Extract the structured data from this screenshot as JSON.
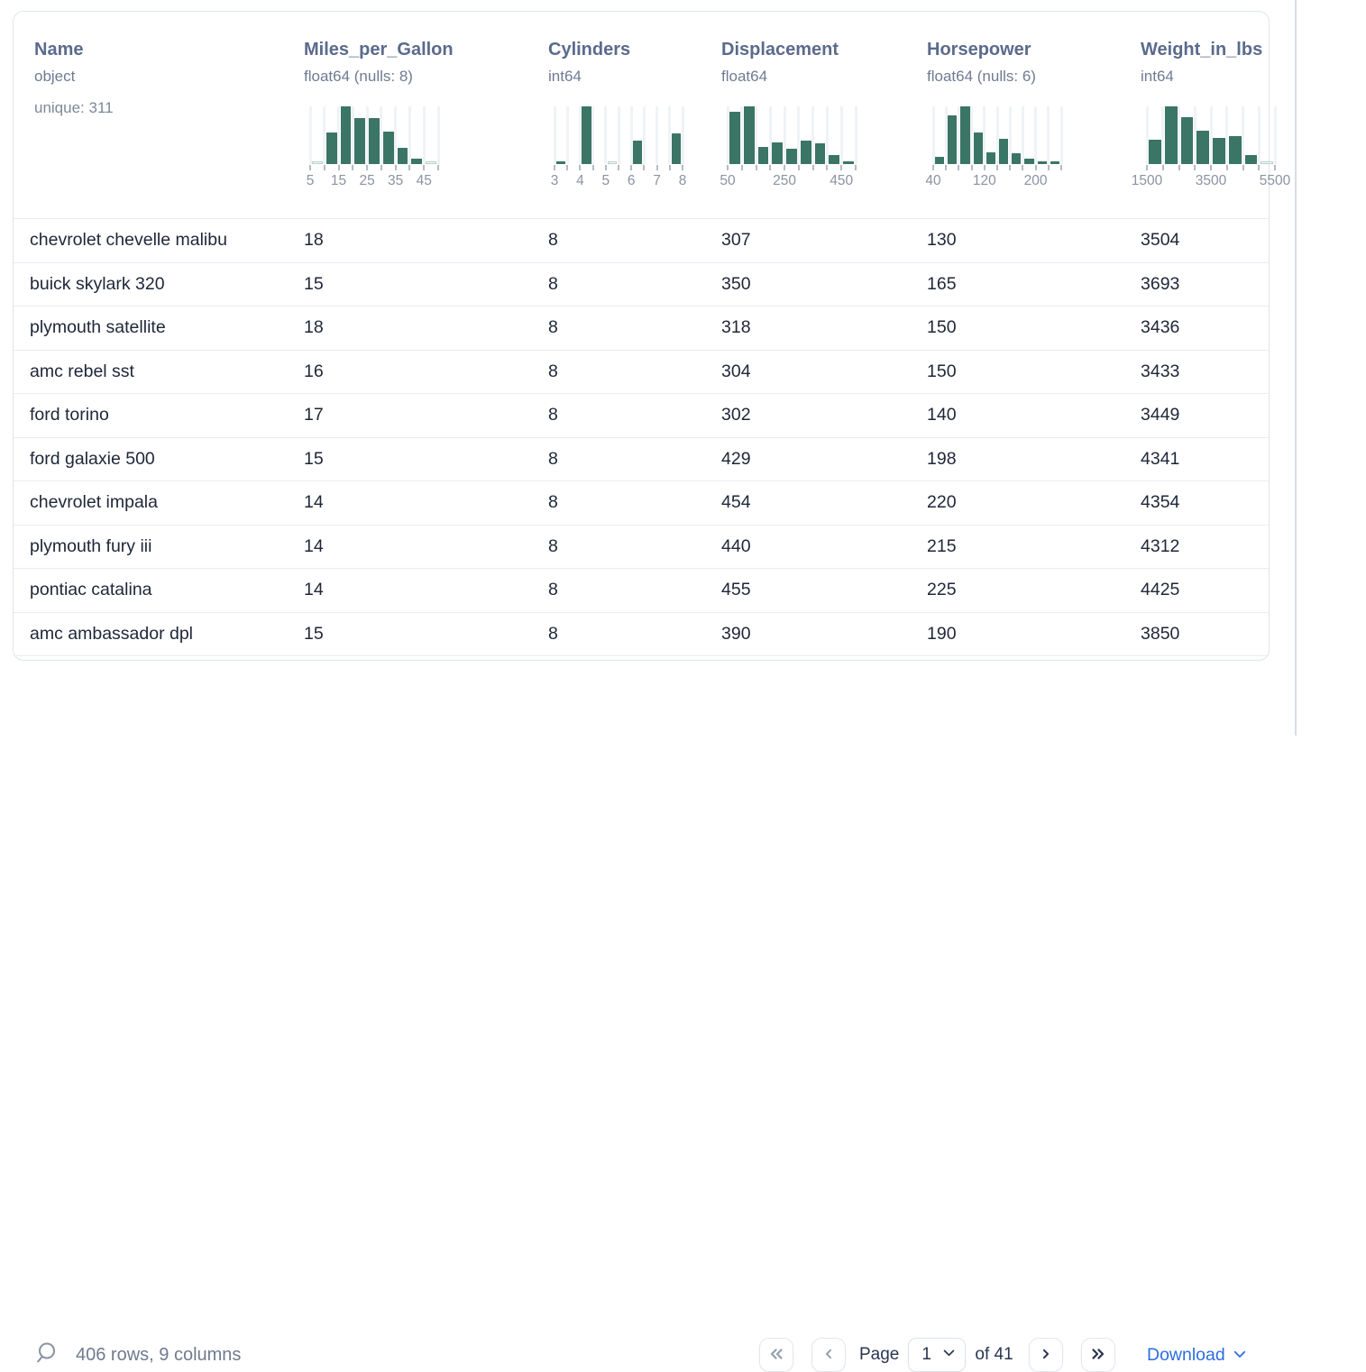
{
  "table": {
    "columns": [
      {
        "name": "Name",
        "type": "object",
        "extra": "unique: 311",
        "chart": null
      },
      {
        "name": "Miles_per_Gallon",
        "type": "float64 (nulls: 8)",
        "extra": null,
        "chart": 0
      },
      {
        "name": "Cylinders",
        "type": "int64",
        "extra": null,
        "chart": 1
      },
      {
        "name": "Displacement",
        "type": "float64",
        "extra": null,
        "chart": 2
      },
      {
        "name": "Horsepower",
        "type": "float64 (nulls: 6)",
        "extra": null,
        "chart": 3
      },
      {
        "name": "Weight_in_lbs",
        "type": "int64",
        "extra": null,
        "chart": 4
      }
    ],
    "rows": [
      [
        "chevrolet chevelle malibu",
        "18",
        "8",
        "307",
        "130",
        "3504"
      ],
      [
        "buick skylark 320",
        "15",
        "8",
        "350",
        "165",
        "3693"
      ],
      [
        "plymouth satellite",
        "18",
        "8",
        "318",
        "150",
        "3436"
      ],
      [
        "amc rebel sst",
        "16",
        "8",
        "304",
        "150",
        "3433"
      ],
      [
        "ford torino",
        "17",
        "8",
        "302",
        "140",
        "3449"
      ],
      [
        "ford galaxie 500",
        "15",
        "8",
        "429",
        "198",
        "4341"
      ],
      [
        "chevrolet impala",
        "14",
        "8",
        "454",
        "220",
        "4354"
      ],
      [
        "plymouth fury iii",
        "14",
        "8",
        "440",
        "215",
        "4312"
      ],
      [
        "pontiac catalina",
        "14",
        "8",
        "455",
        "225",
        "4425"
      ],
      [
        "amc ambassador dpl",
        "15",
        "8",
        "390",
        "190",
        "3850"
      ]
    ]
  },
  "chart_data": [
    {
      "type": "histogram",
      "column": "Miles_per_Gallon",
      "x_range": [
        5,
        50
      ],
      "bars_pct": [
        0.5,
        55,
        100,
        79,
        79,
        57,
        28,
        10,
        0.5
      ],
      "ticks": [
        {
          "pos": 0,
          "label": "5"
        },
        {
          "pos": 0.2222,
          "label": "15"
        },
        {
          "pos": 0.4444,
          "label": "25"
        },
        {
          "pos": 0.6667,
          "label": "35"
        },
        {
          "pos": 0.8889,
          "label": "45"
        }
      ]
    },
    {
      "type": "histogram",
      "column": "Cylinders",
      "x_range": [
        3,
        8
      ],
      "bars_pct": [
        4,
        0,
        100,
        0,
        0.5,
        0,
        40,
        0,
        0,
        53
      ],
      "ticks": [
        {
          "pos": 0,
          "label": "3"
        },
        {
          "pos": 0.2,
          "label": "4"
        },
        {
          "pos": 0.4,
          "label": "5"
        },
        {
          "pos": 0.6,
          "label": "6"
        },
        {
          "pos": 0.8,
          "label": "7"
        },
        {
          "pos": 1,
          "label": "8"
        }
      ]
    },
    {
      "type": "histogram",
      "column": "Displacement",
      "x_range": [
        50,
        500
      ],
      "bars_pct": [
        90,
        100,
        30,
        38,
        26,
        41,
        36,
        16,
        4
      ],
      "ticks": [
        {
          "pos": 0,
          "label": "50"
        },
        {
          "pos": 0.4444,
          "label": "250"
        },
        {
          "pos": 0.8889,
          "label": "450"
        }
      ]
    },
    {
      "type": "histogram",
      "column": "Horsepower",
      "x_range": [
        40,
        240
      ],
      "bars_pct": [
        13,
        85,
        100,
        55,
        20,
        43,
        19,
        9,
        5,
        4
      ],
      "ticks": [
        {
          "pos": 0,
          "label": "40"
        },
        {
          "pos": 0.4,
          "label": "120"
        },
        {
          "pos": 0.8,
          "label": "200"
        }
      ]
    },
    {
      "type": "histogram",
      "column": "Weight_in_lbs",
      "x_range": [
        1500,
        5500
      ],
      "bars_pct": [
        42,
        100,
        82,
        58,
        45,
        48,
        15,
        0.5
      ],
      "ticks": [
        {
          "pos": 0,
          "label": "1500"
        },
        {
          "pos": 0.5,
          "label": "3500"
        },
        {
          "pos": 1,
          "label": "5500"
        }
      ]
    }
  ],
  "footer": {
    "summary": "406 rows, 9 columns",
    "page_label": "Page",
    "page_value": "1",
    "of_label": "of 41",
    "download_label": "Download"
  },
  "icons": {
    "search": "magnifier",
    "first_page": "double-chevron-left",
    "prev_page": "chevron-left",
    "next_page": "chevron-right",
    "last_page": "double-chevron-right",
    "page_select": "chevron-down",
    "download": "chevron-down"
  },
  "colors": {
    "histogram_bar": "#3a7565",
    "link_blue": "#2e6edf",
    "column_title": "#5a6b8c",
    "row_text": "#1e2637"
  }
}
